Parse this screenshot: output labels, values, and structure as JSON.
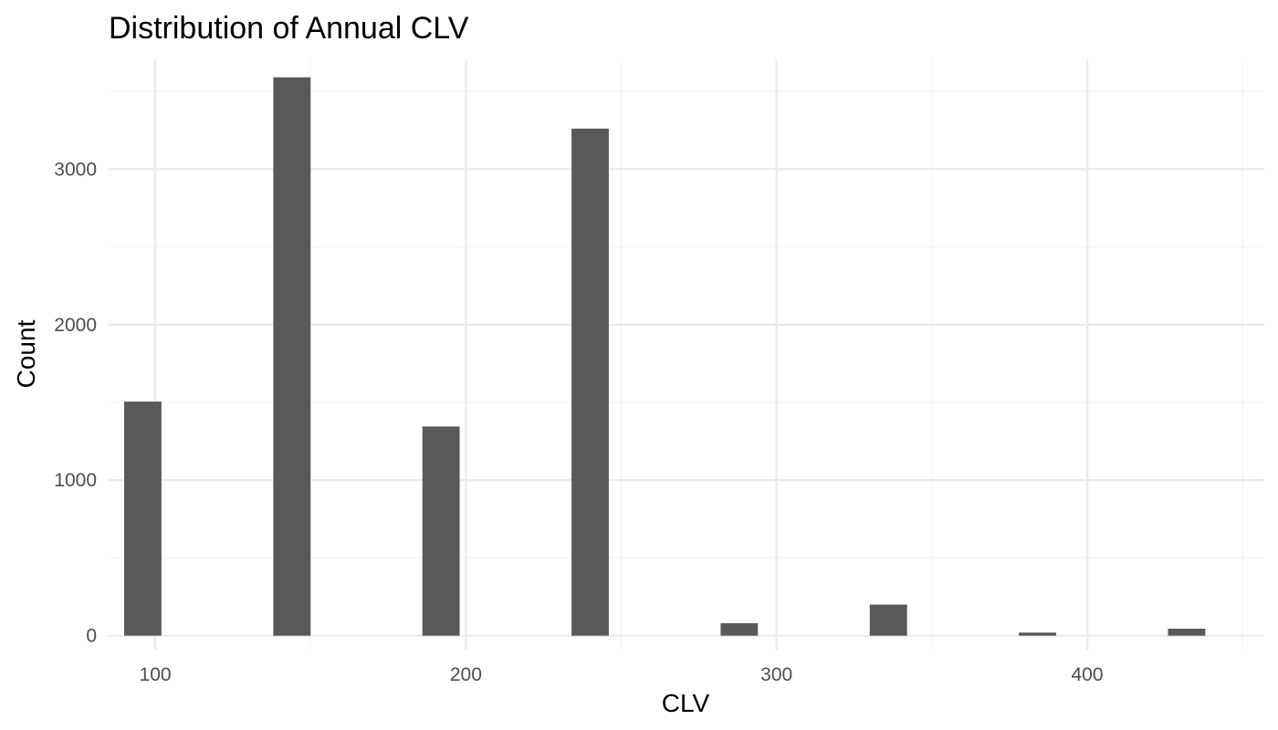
{
  "chart_data": {
    "type": "bar",
    "title": "Distribution of Annual CLV",
    "xlabel": "CLV",
    "ylabel": "Count",
    "xlim": [
      85,
      457
    ],
    "ylim": [
      -90,
      3700
    ],
    "x_ticks": [
      100,
      200,
      300,
      400
    ],
    "x_minor_ticks": [
      150,
      250,
      350,
      450
    ],
    "y_ticks": [
      0,
      1000,
      2000,
      3000
    ],
    "y_minor_ticks": [
      500,
      1500,
      2500,
      3500
    ],
    "bin_width": 12,
    "bins": [
      {
        "x": 96,
        "count": 1505
      },
      {
        "x": 144,
        "count": 3590
      },
      {
        "x": 192,
        "count": 1345
      },
      {
        "x": 240,
        "count": 3260
      },
      {
        "x": 288,
        "count": 80
      },
      {
        "x": 336,
        "count": 200
      },
      {
        "x": 384,
        "count": 20
      },
      {
        "x": 432,
        "count": 45
      }
    ],
    "grid": true,
    "colors": {
      "bar": "#595959",
      "grid_major": "#ebebeb",
      "grid_minor": "#f4f4f4",
      "background": "#ffffff"
    }
  }
}
